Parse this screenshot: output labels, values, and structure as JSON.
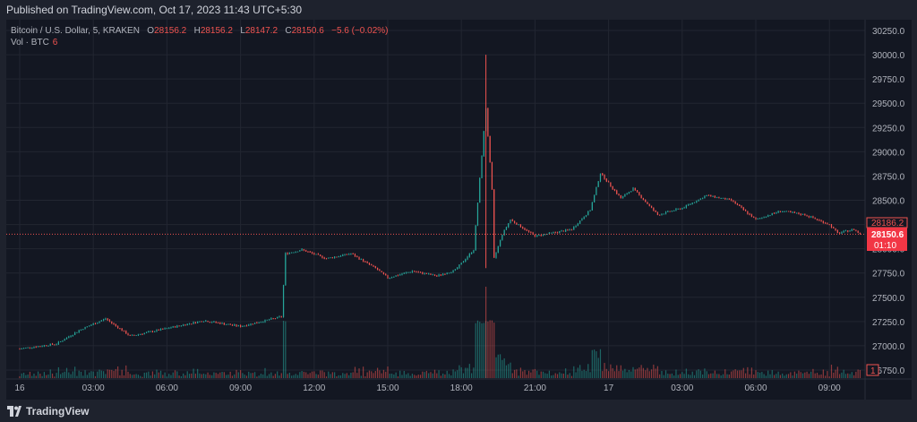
{
  "header": {
    "published_text": "Published on TradingView.com, Oct 17, 2023 11:43 UTC+5:30"
  },
  "legend": {
    "symbol": "Bitcoin / U.S. Dollar, 5, KRAKEN",
    "o_label": "O",
    "o_value": "28156.2",
    "h_label": "H",
    "h_value": "28156.2",
    "l_label": "L",
    "l_value": "28147.2",
    "c_label": "C",
    "c_value": "28150.6",
    "change": "−5.6 (−0.02%)",
    "vol_label": "Vol · BTC",
    "vol_value": "6"
  },
  "price_axis": {
    "ticks": [
      "30250.0",
      "30000.0",
      "29750.0",
      "29500.0",
      "29250.0",
      "29000.0",
      "28750.0",
      "28500.0",
      "28250.0",
      "28000.0",
      "27750.0",
      "27500.0",
      "27250.0",
      "27000.0",
      "26750.0"
    ],
    "marker_upper": "28186.2",
    "marker_current": "28150.6",
    "marker_countdown": "01:10",
    "volume_badge": "1"
  },
  "time_axis": {
    "labels": [
      "16",
      "03:00",
      "06:00",
      "09:00",
      "12:00",
      "15:00",
      "18:00",
      "21:00",
      "17",
      "03:00",
      "06:00",
      "09:00"
    ]
  },
  "footer": {
    "brand": "TradingView"
  },
  "colors": {
    "up": "#26a69a",
    "down": "#ef5350",
    "background": "#131722",
    "grid": "#222631",
    "axis_text": "#b2b5be",
    "price_line": "#ef5350"
  },
  "chart_data": {
    "type": "candlestick",
    "symbol": "Bitcoin / U.S. Dollar, 5, KRAKEN",
    "ylim": [
      26750,
      30300
    ],
    "x_labels": [
      "16",
      "03:00",
      "06:00",
      "09:00",
      "12:00",
      "15:00",
      "18:00",
      "21:00",
      "17",
      "03:00",
      "06:00",
      "09:00"
    ],
    "keypoints": [
      {
        "t": "Oct 16 00:00",
        "price": 26970
      },
      {
        "t": "Oct 16 01:30",
        "price": 27020
      },
      {
        "t": "Oct 16 02:30",
        "price": 27170
      },
      {
        "t": "Oct 16 03:30",
        "price": 27280
      },
      {
        "t": "Oct 16 04:30",
        "price": 27100
      },
      {
        "t": "Oct 16 06:00",
        "price": 27180
      },
      {
        "t": "Oct 16 07:30",
        "price": 27260
      },
      {
        "t": "Oct 16 09:00",
        "price": 27200
      },
      {
        "t": "Oct 16 10:20",
        "price": 27280
      },
      {
        "t": "Oct 16 10:40",
        "price": 27300
      },
      {
        "t": "Oct 16 10:50",
        "price": 27950
      },
      {
        "t": "Oct 16 11:30",
        "price": 27990
      },
      {
        "t": "Oct 16 12:30",
        "price": 27900
      },
      {
        "t": "Oct 16 13:30",
        "price": 27950
      },
      {
        "t": "Oct 16 14:30",
        "price": 27800
      },
      {
        "t": "Oct 16 15:00",
        "price": 27700
      },
      {
        "t": "Oct 16 16:00",
        "price": 27770
      },
      {
        "t": "Oct 16 17:00",
        "price": 27720
      },
      {
        "t": "Oct 16 17:45",
        "price": 27780
      },
      {
        "t": "Oct 16 18:30",
        "price": 27990
      },
      {
        "t": "Oct 16 19:00",
        "price": 29450
      },
      {
        "t": "Oct 16 19:15",
        "price": 28600
      },
      {
        "t": "Oct 16 19:20",
        "price": 27900
      },
      {
        "t": "Oct 16 19:40",
        "price": 28150
      },
      {
        "t": "Oct 16 20:00",
        "price": 28300
      },
      {
        "t": "Oct 16 21:00",
        "price": 28130
      },
      {
        "t": "Oct 16 22:30",
        "price": 28200
      },
      {
        "t": "Oct 16 23:15",
        "price": 28400
      },
      {
        "t": "Oct 16 23:40",
        "price": 28780
      },
      {
        "t": "Oct 17 00:30",
        "price": 28520
      },
      {
        "t": "Oct 17 01:00",
        "price": 28620
      },
      {
        "t": "Oct 17 02:00",
        "price": 28350
      },
      {
        "t": "Oct 17 03:00",
        "price": 28420
      },
      {
        "t": "Oct 17 04:00",
        "price": 28550
      },
      {
        "t": "Oct 17 05:00",
        "price": 28500
      },
      {
        "t": "Oct 17 06:00",
        "price": 28300
      },
      {
        "t": "Oct 17 07:00",
        "price": 28390
      },
      {
        "t": "Oct 17 08:00",
        "price": 28350
      },
      {
        "t": "Oct 17 09:00",
        "price": 28250
      },
      {
        "t": "Oct 17 09:20",
        "price": 28160
      },
      {
        "t": "Oct 17 10:00",
        "price": 28200
      },
      {
        "t": "Oct 17 10:15",
        "price": 28150.6
      }
    ],
    "last_close": 28150.6,
    "marked_price": 28186.2
  }
}
